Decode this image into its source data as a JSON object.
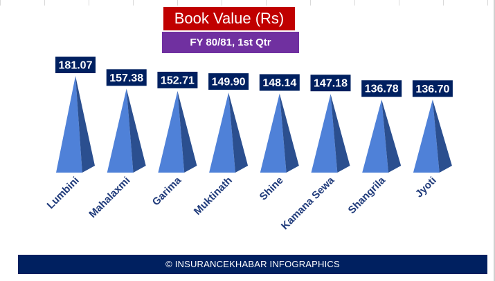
{
  "title": "Book Value (Rs)",
  "subtitle": "FY 80/81, 1st Qtr",
  "footer": "© INSURANCEKHABAR INFOGRAPHICS",
  "colors": {
    "pyramid_light": "#4f81d8",
    "pyramid_dark": "#2b4f8f",
    "label_bg": "#002060",
    "category_text": "#1f3a7a"
  },
  "chart_data": {
    "type": "bar",
    "style": "pyramid",
    "title": "Book Value (Rs)",
    "subtitle": "FY 80/81, 1st Qtr",
    "categories": [
      "Lumbini",
      "Mahalaxmi",
      "Garima",
      "Muktinath",
      "Shine",
      "Kamana Sewa",
      "Shangrila",
      "Jyoti"
    ],
    "values": [
      181.07,
      157.38,
      152.71,
      149.9,
      148.14,
      147.18,
      136.78,
      136.7
    ],
    "value_labels": [
      "181.07",
      "157.38",
      "152.71",
      "149.90",
      "148.14",
      "147.18",
      "136.78",
      "136.70"
    ],
    "ylim": [
      0,
      181.07
    ],
    "grid": false,
    "legend": "none"
  }
}
